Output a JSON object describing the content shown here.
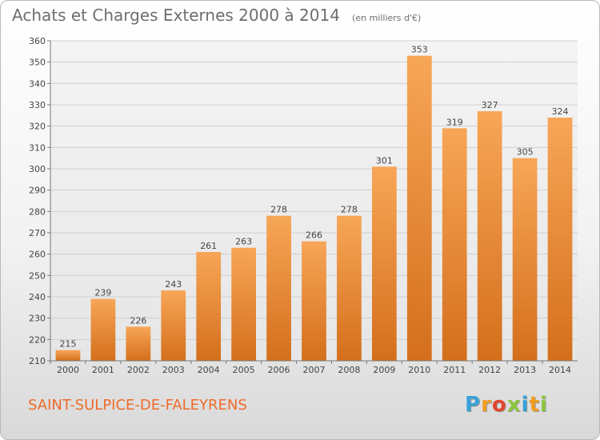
{
  "header": {
    "title": "Achats et Charges Externes 2000 à 2014",
    "unit": "(en milliers d'€)"
  },
  "footer": {
    "commune": "SAINT-SULPICE-DE-FALEYRENS",
    "logo_letters": [
      "P",
      "r",
      "o",
      "x",
      "i",
      "t",
      "i"
    ],
    "logo_colors": [
      "#3aa1d9",
      "#f39c1f",
      "#e1462f",
      "#8dc63f",
      "#3aa1d9",
      "#f39c1f",
      "#8dc63f"
    ]
  },
  "chart_data": {
    "type": "bar",
    "title": "Achats et Charges Externes 2000 à 2014",
    "xlabel": "",
    "ylabel": "",
    "categories": [
      "2000",
      "2001",
      "2002",
      "2003",
      "2004",
      "2005",
      "2006",
      "2007",
      "2008",
      "2009",
      "2010",
      "2011",
      "2012",
      "2013",
      "2014"
    ],
    "values": [
      215,
      239,
      226,
      243,
      261,
      263,
      278,
      266,
      278,
      301,
      353,
      319,
      327,
      305,
      324
    ],
    "ylim": [
      210,
      360
    ],
    "yticks": [
      210,
      220,
      230,
      240,
      250,
      260,
      270,
      280,
      290,
      300,
      310,
      320,
      330,
      340,
      350,
      360
    ],
    "grid": true,
    "bar_color": "#f0903a"
  }
}
